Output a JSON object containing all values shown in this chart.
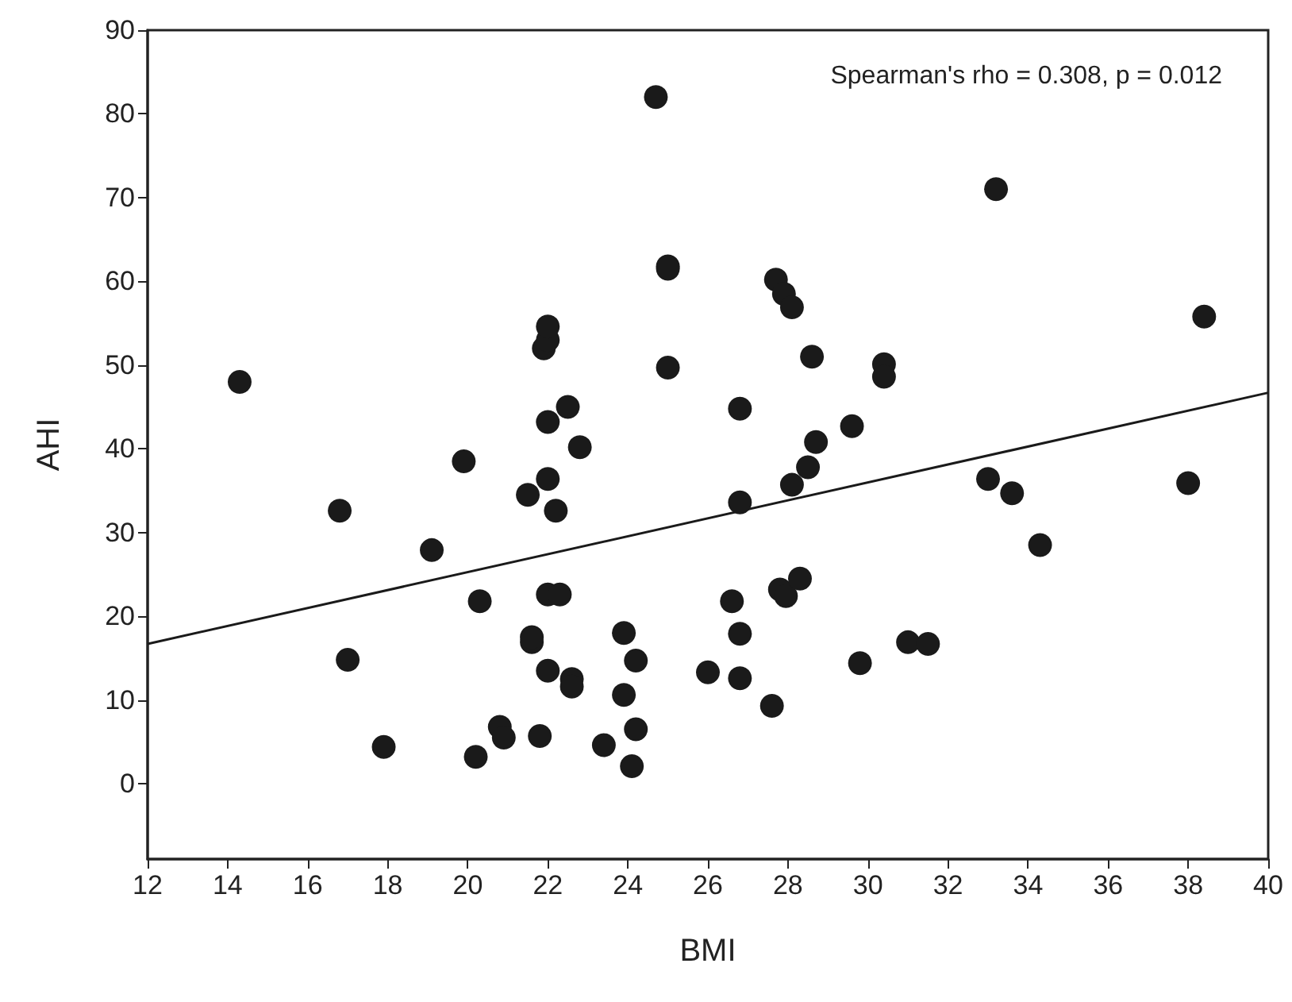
{
  "chart_data": {
    "type": "scatter",
    "xlabel": "BMI",
    "ylabel": "AHI",
    "annotations": [
      "Spearman's rho = 0.308, p = 0.012"
    ],
    "xlim": [
      12,
      40
    ],
    "xticks": [
      12,
      14,
      16,
      18,
      20,
      22,
      24,
      26,
      28,
      30,
      32,
      34,
      36,
      38,
      40
    ],
    "ylim": [
      -9,
      90
    ],
    "yticks": [
      0,
      10,
      20,
      30,
      40,
      50,
      60,
      70,
      80,
      90
    ],
    "grid": false,
    "marker": "circle",
    "series": [
      {
        "type": "scatter",
        "color": "#1a1a1a",
        "x": [
          14.3,
          16.8,
          17.0,
          17.9,
          19.1,
          19.9,
          20.3,
          20.2,
          20.8,
          20.9,
          21.5,
          21.6,
          21.6,
          21.8,
          21.9,
          22.0,
          22.0,
          22.0,
          22.0,
          22.2,
          22.0,
          22.0,
          22.3,
          22.5,
          22.8,
          22.6,
          22.6,
          23.4,
          23.9,
          23.9,
          24.2,
          24.2,
          24.1,
          24.7,
          25.0,
          25.0,
          25.0,
          26.0,
          26.8,
          26.8,
          26.6,
          27.6,
          27.8,
          27.95,
          28.3,
          29.8,
          31.0,
          31.5,
          33.0,
          33.6,
          34.3,
          38.0,
          26.8,
          28.1,
          28.5,
          28.7,
          33.2,
          27.7,
          27.9,
          28.1,
          28.6,
          30.4,
          30.4,
          26.8,
          29.6,
          38.4
        ],
        "values": [
          48,
          32.6,
          14.8,
          4.4,
          27.9,
          38.5,
          21.8,
          3.2,
          6.8,
          5.5,
          34.5,
          16.9,
          17.5,
          5.7,
          52,
          53,
          54.6,
          43.2,
          36.4,
          32.6,
          13.5,
          22.6,
          22.6,
          45,
          40.2,
          12.5,
          11.6,
          4.6,
          18,
          10.6,
          14.7,
          6.5,
          2.1,
          82,
          61.8,
          61.5,
          49.7,
          13.3,
          12.6,
          17.9,
          21.8,
          9.3,
          23.2,
          22.4,
          24.5,
          14.4,
          16.9,
          16.7,
          36.4,
          34.7,
          28.5,
          35.9,
          33.6,
          35.7,
          37.8,
          40.8,
          71,
          60.2,
          58.5,
          56.9,
          51,
          50.1,
          48.6,
          44.8,
          42.7,
          55.8
        ]
      },
      {
        "type": "line",
        "color": "#1a1a1a",
        "marker": "none",
        "line_style": "solid",
        "x": [
          12,
          40
        ],
        "values": [
          16.7,
          46.7
        ]
      }
    ]
  }
}
